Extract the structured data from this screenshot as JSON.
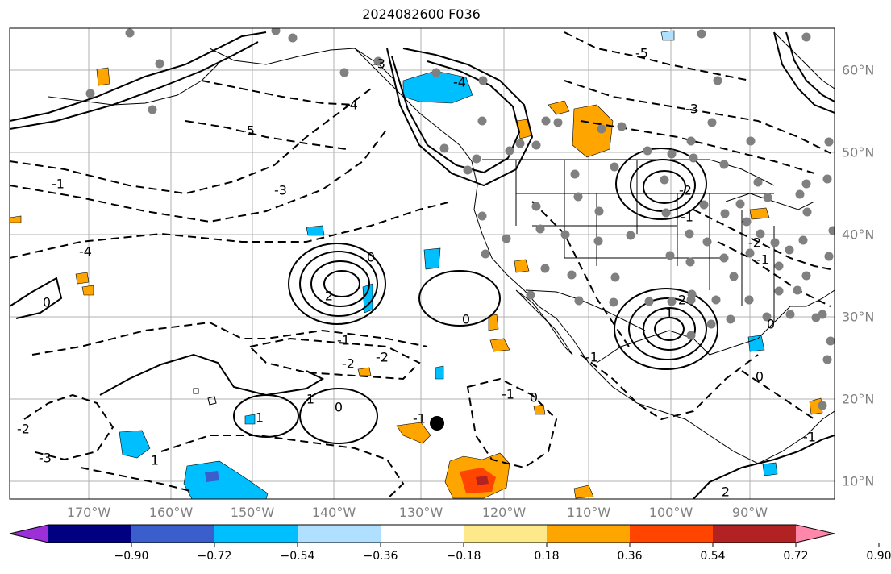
{
  "title": "2024082600 F036",
  "longitude_labels": [
    "170°W",
    "160°W",
    "150°W",
    "140°W",
    "130°W",
    "120°W",
    "110°W",
    "100°W",
    "90°W"
  ],
  "latitude_labels": [
    "60°N",
    "50°N",
    "40°N",
    "30°N",
    "20°N",
    "10°N"
  ],
  "colorbar": {
    "ticks": [
      "−0.90",
      "−0.72",
      "−0.54",
      "−0.36",
      "−0.18",
      "0.18",
      "0.36",
      "0.54",
      "0.72",
      "0.90"
    ],
    "colors": [
      "#9b30d9",
      "#000080",
      "#3a5fcd",
      "#00bfff",
      "#b0e0ff",
      "#ffffff",
      "#fde88a",
      "#ffa500",
      "#ff4500",
      "#b22222",
      "#ff88aa"
    ]
  },
  "contour_labels": [
    "-1",
    "-2",
    "-3",
    "-4",
    "-5",
    "2",
    "1",
    "0",
    "-1",
    "-2",
    "-3",
    "-4",
    "-5",
    "-3",
    "-2",
    "-1",
    "0",
    "1",
    "2",
    "-2",
    "-1",
    "0",
    "1",
    "0",
    "-1",
    "0",
    "-1",
    "-4",
    "-3",
    "-2",
    "1",
    "2",
    "-1",
    "0",
    "-1",
    "0"
  ],
  "marker": "storm-center-dot"
}
